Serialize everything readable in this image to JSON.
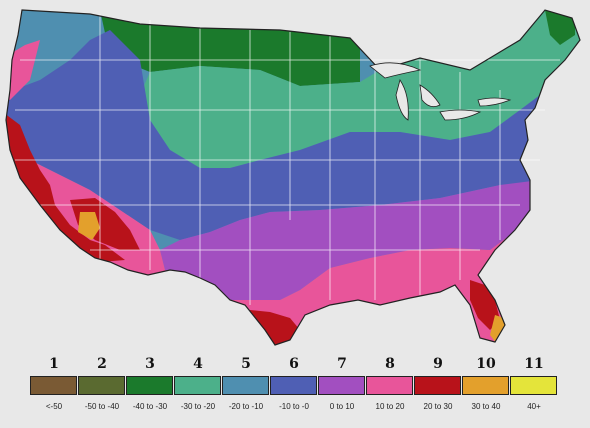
{
  "map": {
    "zones": [
      {
        "zone": "1",
        "range": "<-50",
        "color": "#7a5a34"
      },
      {
        "zone": "2",
        "range": "-50 to -40",
        "color": "#5a6a30"
      },
      {
        "zone": "3",
        "range": "-40 to -30",
        "color": "#1b7a2c"
      },
      {
        "zone": "4",
        "range": "-30 to -20",
        "color": "#4cb08a"
      },
      {
        "zone": "5",
        "range": "-20 to -10",
        "color": "#4f8fb0"
      },
      {
        "zone": "6",
        "range": "-10 to -0",
        "color": "#4f5fb4"
      },
      {
        "zone": "7",
        "range": "0 to 10",
        "color": "#a24fc0"
      },
      {
        "zone": "8",
        "range": "10 to 20",
        "color": "#e8559a"
      },
      {
        "zone": "9",
        "range": "20 to 30",
        "color": "#b8121a"
      },
      {
        "zone": "10",
        "range": "30 to 40",
        "color": "#e3a02c"
      },
      {
        "zone": "11",
        "range": "40+",
        "color": "#e4e43a"
      }
    ]
  }
}
